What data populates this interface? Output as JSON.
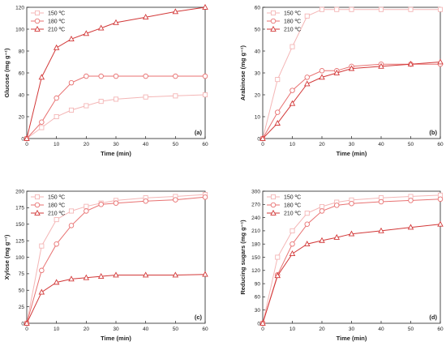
{
  "colors": {
    "150": "#f4b6b6",
    "180": "#e87272",
    "210": "#d23838",
    "axis": "#222222"
  },
  "chart_data": [
    {
      "type": "line",
      "panel_label": "(a)",
      "xlabel": "Time (min)",
      "ylabel": "Glucose (mg g⁻¹)",
      "xlim": [
        0,
        60
      ],
      "ylim": [
        0,
        120
      ],
      "xticks": [
        0,
        10,
        20,
        30,
        40,
        50,
        60
      ],
      "yticks": [
        0,
        20,
        40,
        60,
        80,
        100,
        120
      ],
      "legend_position": "top-left",
      "x": [
        0,
        5,
        10,
        15,
        20,
        25,
        30,
        40,
        50,
        60
      ],
      "series": [
        {
          "name": "150 ºC",
          "marker": "square",
          "values": [
            0,
            10,
            20,
            26,
            30,
            34,
            36,
            38,
            39,
            40
          ]
        },
        {
          "name": "180 ºC",
          "marker": "circle",
          "values": [
            0,
            15,
            37,
            51,
            57,
            57,
            57,
            57,
            57,
            57
          ]
        },
        {
          "name": "210 ºC",
          "marker": "triangle",
          "values": [
            0,
            56,
            83,
            91,
            96,
            101,
            106,
            111,
            116,
            120
          ]
        }
      ]
    },
    {
      "type": "line",
      "panel_label": "(b)",
      "xlabel": "Time (min)",
      "ylabel": "Arabinose (mg g⁻¹)",
      "xlim": [
        0,
        60
      ],
      "ylim": [
        0,
        60
      ],
      "xticks": [
        0,
        10,
        20,
        30,
        40,
        50,
        60
      ],
      "yticks": [
        0,
        10,
        20,
        30,
        40,
        50,
        60
      ],
      "legend_position": "top-left",
      "x": [
        0,
        5,
        10,
        15,
        20,
        25,
        30,
        40,
        50,
        60
      ],
      "series": [
        {
          "name": "150 ºC",
          "marker": "square",
          "values": [
            0,
            27,
            42,
            56,
            59,
            59,
            59,
            59,
            59,
            59
          ]
        },
        {
          "name": "180 ºC",
          "marker": "circle",
          "values": [
            0,
            12,
            22,
            28,
            31,
            31,
            33,
            34,
            34,
            34
          ]
        },
        {
          "name": "210 ºC",
          "marker": "triangle",
          "values": [
            0,
            7,
            16,
            25,
            28,
            30,
            32,
            33,
            34,
            35
          ]
        }
      ]
    },
    {
      "type": "line",
      "panel_label": "(c)",
      "xlabel": "Time (min)",
      "ylabel": "Xylose (mg g⁻¹)",
      "xlim": [
        0,
        60
      ],
      "ylim": [
        0,
        200
      ],
      "xticks": [
        0,
        10,
        20,
        30,
        40,
        50,
        60
      ],
      "yticks": [
        0,
        25,
        50,
        75,
        100,
        125,
        150,
        175,
        200
      ],
      "legend_position": "top-left",
      "x": [
        0,
        5,
        10,
        15,
        20,
        25,
        30,
        40,
        50,
        60
      ],
      "series": [
        {
          "name": "150 ºC",
          "marker": "square",
          "values": [
            0,
            117,
            157,
            170,
            177,
            182,
            186,
            190,
            192,
            195
          ]
        },
        {
          "name": "180 ºC",
          "marker": "circle",
          "values": [
            0,
            80,
            120,
            148,
            170,
            180,
            182,
            185,
            187,
            191
          ]
        },
        {
          "name": "210 ºC",
          "marker": "triangle",
          "values": [
            0,
            47,
            62,
            67,
            69,
            71,
            73,
            73,
            73,
            74
          ]
        }
      ]
    },
    {
      "type": "line",
      "panel_label": "(d)",
      "xlabel": "Time (min)",
      "ylabel": "Reducing sugars (mg g⁻¹)",
      "xlim": [
        0,
        60
      ],
      "ylim": [
        0,
        300
      ],
      "xticks": [
        0,
        10,
        20,
        30,
        40,
        50,
        60
      ],
      "yticks": [
        0,
        30,
        60,
        90,
        120,
        150,
        180,
        210,
        240,
        270,
        300
      ],
      "legend_position": "top-left",
      "x": [
        0,
        5,
        10,
        15,
        20,
        25,
        30,
        40,
        50,
        60
      ],
      "series": [
        {
          "name": "150 ºC",
          "marker": "square",
          "values": [
            0,
            150,
            210,
            250,
            265,
            275,
            280,
            285,
            288,
            291
          ]
        },
        {
          "name": "180 ºC",
          "marker": "circle",
          "values": [
            0,
            110,
            180,
            225,
            255,
            268,
            272,
            276,
            279,
            282
          ]
        },
        {
          "name": "210 ºC",
          "marker": "triangle",
          "values": [
            0,
            108,
            158,
            180,
            188,
            195,
            203,
            210,
            218,
            225
          ]
        }
      ]
    }
  ]
}
